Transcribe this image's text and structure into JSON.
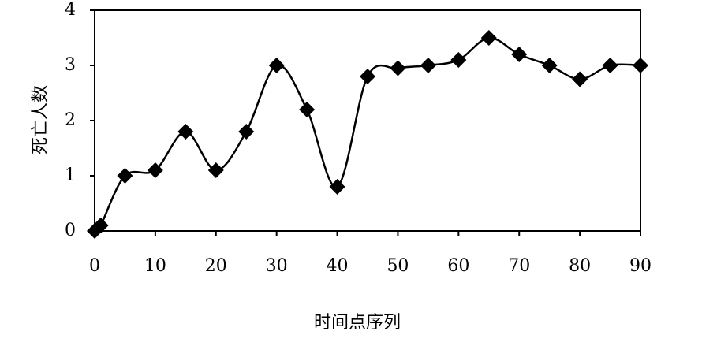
{
  "chart_data": {
    "type": "line",
    "x_label": "时间点序列",
    "y_label": "死亡人数",
    "x": [
      0,
      1,
      5,
      10,
      15,
      20,
      25,
      30,
      35,
      40,
      45,
      50,
      55,
      60,
      65,
      70,
      75,
      80,
      85,
      90
    ],
    "series": [
      {
        "color": "#000000",
        "values": [
          0,
          0.1,
          1.0,
          1.1,
          1.8,
          1.1,
          1.8,
          3.0,
          2.2,
          0.8,
          2.8,
          2.95,
          3.0,
          3.1,
          3.5,
          3.2,
          3.0,
          2.75,
          3.0,
          3.0
        ]
      }
    ],
    "xlim": [
      0,
      90
    ],
    "ylim": [
      0,
      4
    ],
    "xticks": [
      0,
      10,
      20,
      30,
      40,
      50,
      60,
      70,
      80,
      90
    ],
    "yticks": [
      0,
      1,
      2,
      3,
      4
    ],
    "smooth": true,
    "marker": "diamond",
    "grid": false
  }
}
